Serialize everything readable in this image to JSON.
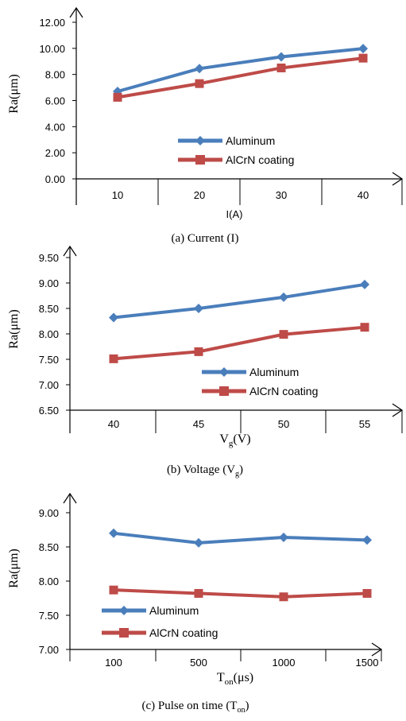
{
  "colors": {
    "aluminum": "#4a7ebb",
    "alcrn": "#be4b48",
    "axis": "#000000"
  },
  "chart_data": [
    {
      "type": "line",
      "ylabel": "Ra(μm)",
      "xlabel": "I(A)",
      "caption": "(a) Current (I)",
      "categories": [
        "10",
        "20",
        "30",
        "40"
      ],
      "yticks": [
        "0.00",
        "2.00",
        "4.00",
        "6.00",
        "8.00",
        "10.00",
        "12.00"
      ],
      "ylim": [
        0,
        12
      ],
      "series": [
        {
          "name": "Aluminum",
          "values": [
            6.7,
            8.45,
            9.35,
            9.98
          ]
        },
        {
          "name": "AlCrN coating",
          "values": [
            6.25,
            7.3,
            8.5,
            9.25
          ]
        }
      ],
      "legend": "center-right",
      "grid": false
    },
    {
      "type": "line",
      "ylabel": "Ra(μm)",
      "xlabel_main": "V",
      "xlabel_sub": "g",
      "xlabel_tail": "(V)",
      "caption_main": "(b) Voltage (V",
      "caption_sub": "g",
      "caption_tail": ")",
      "categories": [
        "40",
        "45",
        "50",
        "55"
      ],
      "yticks": [
        "6.50",
        "7.00",
        "7.50",
        "8.00",
        "8.50",
        "9.00",
        "9.50"
      ],
      "ylim": [
        6.5,
        9.5
      ],
      "series": [
        {
          "name": "Aluminum",
          "values": [
            8.32,
            8.5,
            8.72,
            8.97
          ]
        },
        {
          "name": "AlCrN coating",
          "values": [
            7.51,
            7.65,
            7.99,
            8.13
          ]
        }
      ],
      "legend": "bottom-right",
      "grid": false
    },
    {
      "type": "line",
      "ylabel": "Ra(μm)",
      "xlabel_main": "T",
      "xlabel_sub": "on",
      "xlabel_tail": "(μs)",
      "caption_main": "(c) Pulse on time (T",
      "caption_sub": "on",
      "caption_tail": ")",
      "categories": [
        "100",
        "500",
        "1000",
        "1500"
      ],
      "yticks": [
        "7.00",
        "7.50",
        "8.00",
        "8.50",
        "9.00"
      ],
      "ylim": [
        7,
        9
      ],
      "series": [
        {
          "name": "Aluminum",
          "values": [
            8.7,
            8.56,
            8.64,
            8.6
          ]
        },
        {
          "name": "AlCrN coating",
          "values": [
            7.87,
            7.82,
            7.77,
            7.82
          ]
        }
      ],
      "legend": "bottom-left",
      "grid": false
    }
  ]
}
